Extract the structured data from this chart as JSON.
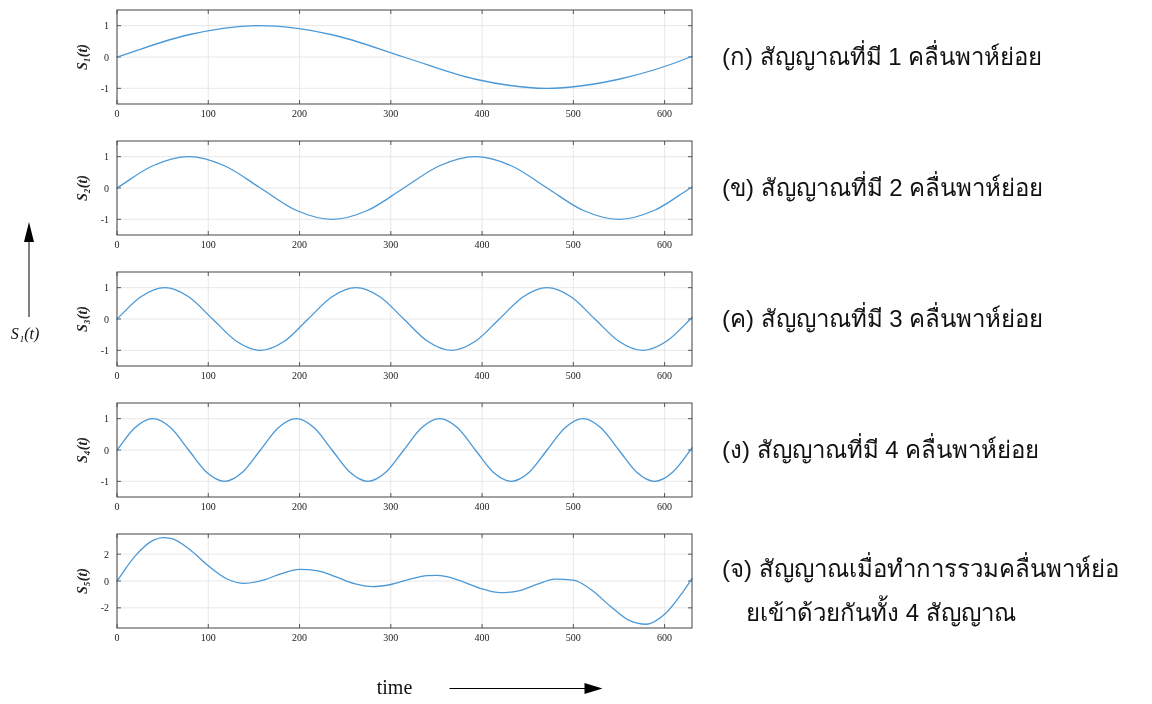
{
  "chart_data": [
    {
      "type": "line",
      "ylabel": "S₁(t)",
      "color": "#4a98d6",
      "xlim": [
        0,
        630
      ],
      "xticks": [
        0,
        100,
        200,
        300,
        400,
        500,
        600
      ],
      "ylim": [
        -1.5,
        1.5
      ],
      "yticks": [
        -1,
        0,
        1
      ],
      "grid": true,
      "x": [
        0,
        78.5,
        157.1,
        235.6,
        314.2,
        392.7,
        471.2,
        549.8,
        628.3,
        630
      ],
      "values": [
        0,
        0.71,
        1,
        0.71,
        0,
        -0.71,
        -1,
        -0.71,
        0,
        0.02
      ],
      "annotations": [
        "(ก) สัญญาณที่มี 1 คลื่นพาห์ย่อย"
      ]
    },
    {
      "type": "line",
      "ylabel": "S₂(t)",
      "color": "#4a98d6",
      "xlim": [
        0,
        630
      ],
      "xticks": [
        0,
        100,
        200,
        300,
        400,
        500,
        600
      ],
      "ylim": [
        -1.5,
        1.5
      ],
      "yticks": [
        -1,
        0,
        1
      ],
      "grid": true,
      "x": [
        0,
        39.3,
        78.5,
        117.8,
        157.1,
        196.3,
        235.6,
        274.9,
        314.2,
        353.4,
        392.7,
        432,
        471.2,
        510.5,
        549.8,
        589,
        628.3,
        630
      ],
      "values": [
        0,
        0.71,
        1,
        0.71,
        0,
        -0.71,
        -1,
        -0.71,
        0,
        0.71,
        1,
        0.71,
        0,
        -0.71,
        -1,
        -0.71,
        0,
        0.03
      ],
      "annotations": [
        "(ข) สัญญาณที่มี 2 คลื่นพาห์ย่อย"
      ]
    },
    {
      "type": "line",
      "ylabel": "S₃(t)",
      "color": "#4a98d6",
      "xlim": [
        0,
        630
      ],
      "xticks": [
        0,
        100,
        200,
        300,
        400,
        500,
        600
      ],
      "ylim": [
        -1.5,
        1.5
      ],
      "yticks": [
        -1,
        0,
        1
      ],
      "grid": true,
      "x": [
        0,
        26.2,
        52.4,
        78.5,
        104.7,
        130.9,
        157.1,
        183.3,
        209.4,
        235.6,
        261.8,
        288,
        314.2,
        340.3,
        366.5,
        392.7,
        418.9,
        445.1,
        471.2,
        497.4,
        523.6,
        549.8,
        576,
        602.1,
        628.3,
        630
      ],
      "values": [
        0,
        0.71,
        1,
        0.71,
        0,
        -0.71,
        -1,
        -0.71,
        0,
        0.71,
        1,
        0.71,
        0,
        -0.71,
        -1,
        -0.71,
        0,
        0.71,
        1,
        0.71,
        0,
        -0.71,
        -1,
        -0.71,
        0,
        0.05
      ],
      "annotations": [
        "(ค) สัญญาณที่มี 3 คลื่นพาห์ย่อย",
        "S₁(t)"
      ]
    },
    {
      "type": "line",
      "ylabel": "S₄(t)",
      "color": "#4a98d6",
      "xlim": [
        0,
        630
      ],
      "xticks": [
        0,
        100,
        200,
        300,
        400,
        500,
        600
      ],
      "ylim": [
        -1.5,
        1.5
      ],
      "yticks": [
        -1,
        0,
        1
      ],
      "grid": true,
      "x": [
        0,
        19.6,
        39.3,
        58.9,
        78.5,
        98.2,
        117.8,
        137.4,
        157.1,
        176.7,
        196.3,
        216,
        235.6,
        255.3,
        274.9,
        294.5,
        314.2,
        333.8,
        353.4,
        373.1,
        392.7,
        412.3,
        432,
        451.6,
        471.2,
        490.9,
        510.5,
        530.1,
        549.8,
        569.4,
        589,
        608.7,
        628.3,
        630
      ],
      "values": [
        0,
        0.71,
        1,
        0.71,
        0,
        -0.71,
        -1,
        -0.71,
        0,
        0.71,
        1,
        0.71,
        0,
        -0.71,
        -1,
        -0.71,
        0,
        0.71,
        1,
        0.71,
        0,
        -0.71,
        -1,
        -0.71,
        0,
        0.71,
        1,
        0.71,
        0,
        -0.71,
        -1,
        -0.71,
        0,
        0.07
      ],
      "annotations": [
        "(ง) สัญญาณที่มี 4 คลื่นพาห์ย่อย"
      ]
    },
    {
      "type": "line",
      "ylabel": "S₅(t)",
      "xlabel": "time",
      "color": "#4a98d6",
      "xlim": [
        0,
        630
      ],
      "xticks": [
        0,
        100,
        200,
        300,
        400,
        500,
        600
      ],
      "ylim": [
        -3.5,
        3.5
      ],
      "yticks": [
        -2,
        0,
        2
      ],
      "grid": true,
      "x": [
        0,
        20,
        40,
        50,
        60,
        80,
        100,
        120,
        140,
        160,
        180,
        200,
        220,
        240,
        260,
        280,
        300,
        320,
        340,
        350,
        360,
        380,
        400,
        420,
        440,
        460,
        480,
        500,
        520,
        540,
        560,
        580,
        600,
        620,
        630
      ],
      "values": [
        0,
        1.87,
        3.04,
        3.23,
        3.15,
        2.33,
        1.13,
        0.17,
        -0.18,
        0.06,
        0.55,
        0.86,
        0.75,
        0.3,
        -0.2,
        -0.42,
        -0.26,
        0.12,
        0.4,
        0.42,
        0.34,
        -0.08,
        -0.59,
        -0.87,
        -0.73,
        -0.26,
        0.14,
        0.06,
        -0.67,
        -1.85,
        -2.89,
        -3.22,
        -2.48,
        -0.82,
        0.17
      ],
      "annotations": [
        "(จ) สัญญาณเมื่อทำการรวมคลื่นพาห์ย่อยเข้าด้วยกันทั้ง 4 สัญญาณ"
      ]
    }
  ]
}
